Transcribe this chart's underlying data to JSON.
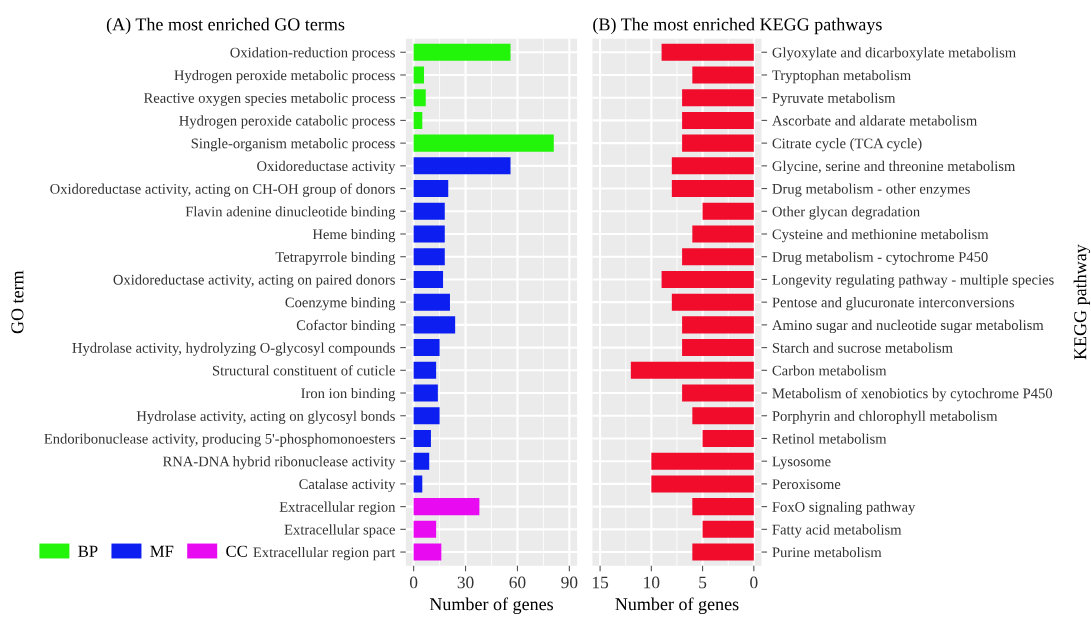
{
  "chart_data": [
    {
      "type": "bar",
      "orientation": "horizontal",
      "title": "(A) The most enriched GO terms",
      "xlabel": "Number of genes",
      "ylabel": "GO term",
      "categories": [
        "Oxidation-reduction process",
        "Hydrogen peroxide metabolic process",
        "Reactive oxygen species metabolic process",
        "Hydrogen peroxide catabolic process",
        "Single-organism metabolic process",
        "Oxidoreductase activity",
        "Oxidoreductase activity, acting on CH-OH group of donors",
        "Flavin adenine dinucleotide binding",
        "Heme binding",
        "Tetrapyrrole binding",
        "Oxidoreductase activity, acting on paired donors",
        "Coenzyme binding",
        "Cofactor binding",
        "Hydrolase activity, hydrolyzing O-glycosyl compounds",
        "Structural constituent of cuticle",
        "Iron ion binding",
        "Hydrolase activity, acting on glycosyl bonds",
        "Endoribonuclease activity, producing 5'-phosphomonoesters",
        "RNA-DNA hybrid ribonuclease activity",
        "Catalase activity",
        "Extracellular region",
        "Extracellular space",
        "Extracellular region part"
      ],
      "series": [
        {
          "name": "BP",
          "color": "#22f40a",
          "values": [
            56,
            6,
            7,
            5,
            81,
            null,
            null,
            null,
            null,
            null,
            null,
            null,
            null,
            null,
            null,
            null,
            null,
            null,
            null,
            null,
            null,
            null,
            null
          ]
        },
        {
          "name": "MF",
          "color": "#0c1ff0",
          "values": [
            null,
            null,
            null,
            null,
            null,
            56,
            20,
            18,
            18,
            18,
            17,
            21,
            24,
            15,
            13,
            14,
            15,
            10,
            9,
            5,
            null,
            null,
            null
          ]
        },
        {
          "name": "CC",
          "color": "#e80af0",
          "values": [
            null,
            null,
            null,
            null,
            null,
            null,
            null,
            null,
            null,
            null,
            null,
            null,
            null,
            null,
            null,
            null,
            null,
            null,
            null,
            null,
            38,
            13,
            16
          ]
        }
      ],
      "xlim": [
        -4.5,
        94.5
      ],
      "xticks": [
        0,
        30,
        60,
        90
      ],
      "grid": true,
      "legend": "bottom left"
    },
    {
      "type": "bar",
      "orientation": "horizontal",
      "title": "(B) The most enriched KEGG pathways",
      "xlabel": "Number of genes",
      "ylabel": "KEGG pathway",
      "categories": [
        "Glyoxylate and dicarboxylate metabolism",
        "Tryptophan metabolism",
        "Pyruvate metabolism",
        "Ascorbate and aldarate metabolism",
        "Citrate cycle (TCA cycle)",
        "Glycine, serine and threonine metabolism",
        "Drug metabolism - other enzymes",
        "Other glycan degradation",
        "Cysteine and methionine metabolism",
        "Drug metabolism - cytochrome P450",
        "Longevity regulating pathway - multiple species",
        "Pentose and glucuronate interconversions",
        "Amino sugar and nucleotide sugar metabolism",
        "Starch and sucrose metabolism",
        "Carbon metabolism",
        "Metabolism of xenobiotics by cytochrome P450",
        "Porphyrin and chlorophyll metabolism",
        "Retinol metabolism",
        "Lysosome",
        "Peroxisome",
        "FoxO signaling pathway",
        "Fatty acid metabolism",
        "Purine metabolism"
      ],
      "values": [
        9,
        6,
        7,
        7,
        7,
        8,
        8,
        5,
        6,
        7,
        9,
        8,
        7,
        7,
        12,
        7,
        6,
        5,
        10,
        10,
        6,
        5,
        6
      ],
      "color": "#f20c2c",
      "xlim": [
        15.75,
        -0.75
      ],
      "xticks": [
        15,
        10,
        5,
        0
      ],
      "grid": true
    }
  ]
}
